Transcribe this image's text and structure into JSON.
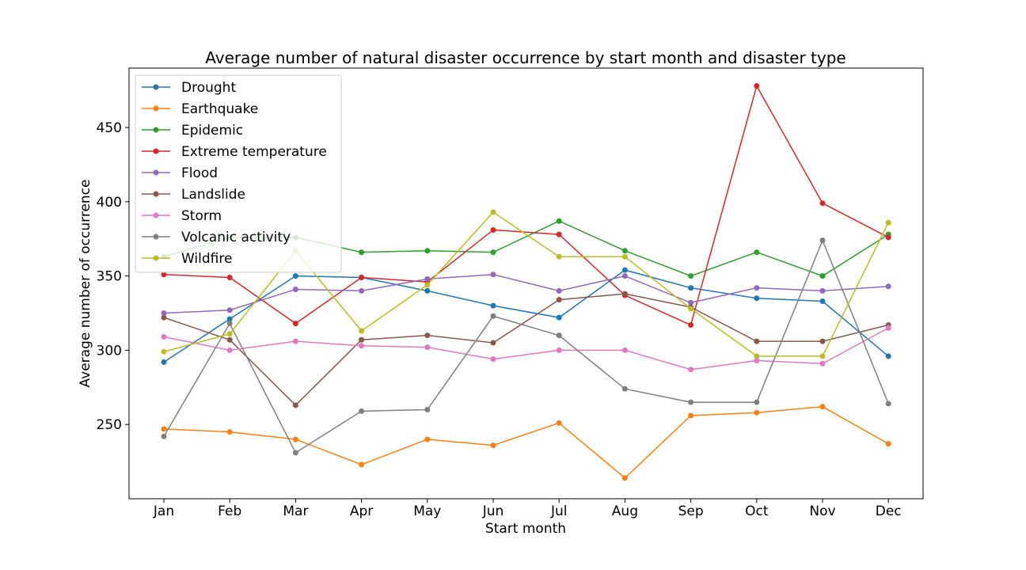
{
  "chart_data": {
    "type": "line",
    "title": "Average number of natural disaster occurrence by start month and disaster type",
    "xlabel": "Start month",
    "ylabel": "Average number of occurrence",
    "categories": [
      "Jan",
      "Feb",
      "Mar",
      "Apr",
      "May",
      "Jun",
      "Jul",
      "Aug",
      "Sep",
      "Oct",
      "Nov",
      "Dec"
    ],
    "ylim": [
      200,
      490
    ],
    "yticks": [
      250,
      300,
      350,
      400,
      450
    ],
    "grid": false,
    "legend_position": "top-left",
    "series": [
      {
        "name": "Drought",
        "color": "#1f77b4",
        "values": [
          292,
          321,
          350,
          349,
          340,
          330,
          322,
          354,
          342,
          335,
          333,
          296
        ]
      },
      {
        "name": "Earthquake",
        "color": "#ff7f0e",
        "values": [
          247,
          245,
          240,
          223,
          240,
          236,
          251,
          214,
          256,
          258,
          262,
          237
        ]
      },
      {
        "name": "Epidemic",
        "color": "#2ca02c",
        "values": [
          363,
          376,
          376,
          366,
          367,
          366,
          387,
          367,
          350,
          366,
          350,
          378
        ]
      },
      {
        "name": "Extreme temperature",
        "color": "#d62728",
        "values": [
          351,
          349,
          318,
          349,
          346,
          381,
          378,
          337,
          317,
          478,
          399,
          376
        ]
      },
      {
        "name": "Flood",
        "color": "#9467bd",
        "values": [
          325,
          327,
          341,
          340,
          348,
          351,
          340,
          350,
          332,
          342,
          340,
          343
        ]
      },
      {
        "name": "Landslide",
        "color": "#8c564b",
        "values": [
          322,
          307,
          263,
          307,
          310,
          305,
          334,
          338,
          329,
          306,
          306,
          317
        ]
      },
      {
        "name": "Storm",
        "color": "#e377c2",
        "values": [
          309,
          300,
          306,
          303,
          302,
          294,
          300,
          300,
          287,
          293,
          291,
          315
        ]
      },
      {
        "name": "Volcanic activity",
        "color": "#7f7f7f",
        "values": [
          242,
          318,
          231,
          259,
          260,
          323,
          310,
          274,
          265,
          265,
          374,
          264
        ]
      },
      {
        "name": "Wildfire",
        "color": "#bcbd22",
        "values": [
          299,
          311,
          367,
          313,
          344,
          393,
          363,
          363,
          328,
          296,
          296,
          386
        ]
      }
    ]
  }
}
